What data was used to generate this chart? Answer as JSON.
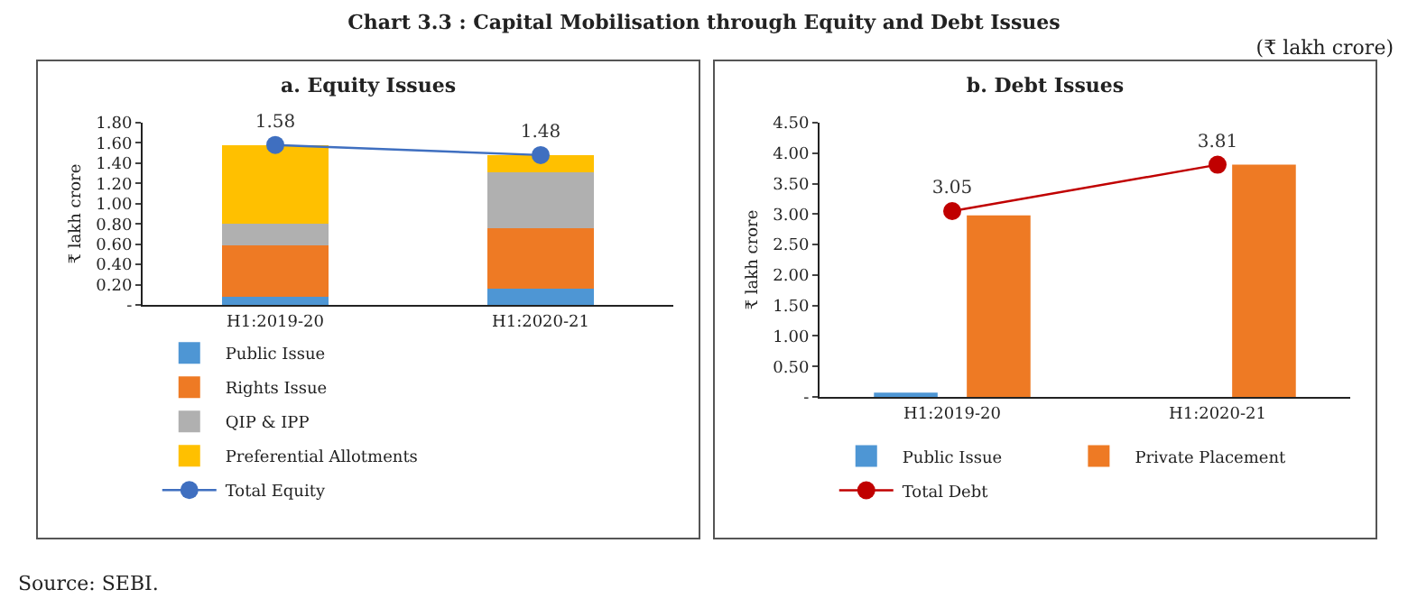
{
  "chart_data": [
    {
      "type": "bar",
      "title": "a. Equity Issues",
      "ylabel": "₹ lakh crore",
      "stacked": true,
      "categories": [
        "H1:2019-20",
        "H1:2020-21"
      ],
      "series": [
        {
          "name": "Public Issue",
          "color": "#4e96d4",
          "values": [
            0.08,
            0.16
          ]
        },
        {
          "name": "Rights Issue",
          "color": "#ee7a24",
          "values": [
            0.51,
            0.6
          ]
        },
        {
          "name": "QIP & IPP",
          "color": "#b0b0b0",
          "values": [
            0.21,
            0.55
          ]
        },
        {
          "name": "Preferential Allotments",
          "color": "#ffc000",
          "values": [
            0.78,
            0.17
          ]
        },
        {
          "name": "Total Equity",
          "type": "line",
          "color": "#3f6fc0",
          "values": [
            1.58,
            1.48
          ],
          "value_labels": [
            "1.58",
            "1.48"
          ]
        }
      ],
      "ylim": [
        0,
        1.8
      ],
      "yticks": [
        {
          "value": 0,
          "label": "-"
        },
        {
          "value": 0.2,
          "label": "0.20"
        },
        {
          "value": 0.4,
          "label": "0.40"
        },
        {
          "value": 0.6,
          "label": "0.60"
        },
        {
          "value": 0.8,
          "label": "0.80"
        },
        {
          "value": 1,
          "label": "1.00"
        },
        {
          "value": 1.2,
          "label": "1.20"
        },
        {
          "value": 1.4,
          "label": "1.40"
        },
        {
          "value": 1.6,
          "label": "1.60"
        },
        {
          "value": 1.8,
          "label": "1.80"
        }
      ],
      "grid": false,
      "legend": "bottom",
      "marker": "circle",
      "annotations": [
        "Chart 3.3 : Capital Mobilisation through Equity and Debt Issues",
        "(₹ lakh crore)",
        "Source: SEBI."
      ]
    },
    {
      "type": "bar",
      "title": "b. Debt Issues",
      "ylabel": "₹ lakh crore",
      "categories": [
        "H1:2019-20",
        "H1:2020-21"
      ],
      "series": [
        {
          "name": "Public Issue",
          "color": "#4e96d4",
          "values": [
            0.07,
            0
          ]
        },
        {
          "name": "Private Placement",
          "color": "#ee7a24",
          "values": [
            2.98,
            3.81
          ]
        },
        {
          "name": "Total Debt",
          "type": "line",
          "color": "#c00000",
          "values": [
            3.05,
            3.81
          ],
          "value_labels": [
            "3.05",
            "3.81"
          ]
        }
      ],
      "ylim": [
        0,
        4.5
      ],
      "yticks": [
        {
          "value": 0,
          "label": "-"
        },
        {
          "value": 0.5,
          "label": "0.50"
        },
        {
          "value": 1,
          "label": "1.00"
        },
        {
          "value": 1.5,
          "label": "1.50"
        },
        {
          "value": 2,
          "label": "2.00"
        },
        {
          "value": 2.5,
          "label": "2.50"
        },
        {
          "value": 3,
          "label": "3.00"
        },
        {
          "value": 3.5,
          "label": "3.50"
        },
        {
          "value": 4,
          "label": "4.00"
        },
        {
          "value": 4.5,
          "label": "4.50"
        }
      ],
      "grid": false,
      "legend": "bottom",
      "marker": "circle"
    }
  ]
}
